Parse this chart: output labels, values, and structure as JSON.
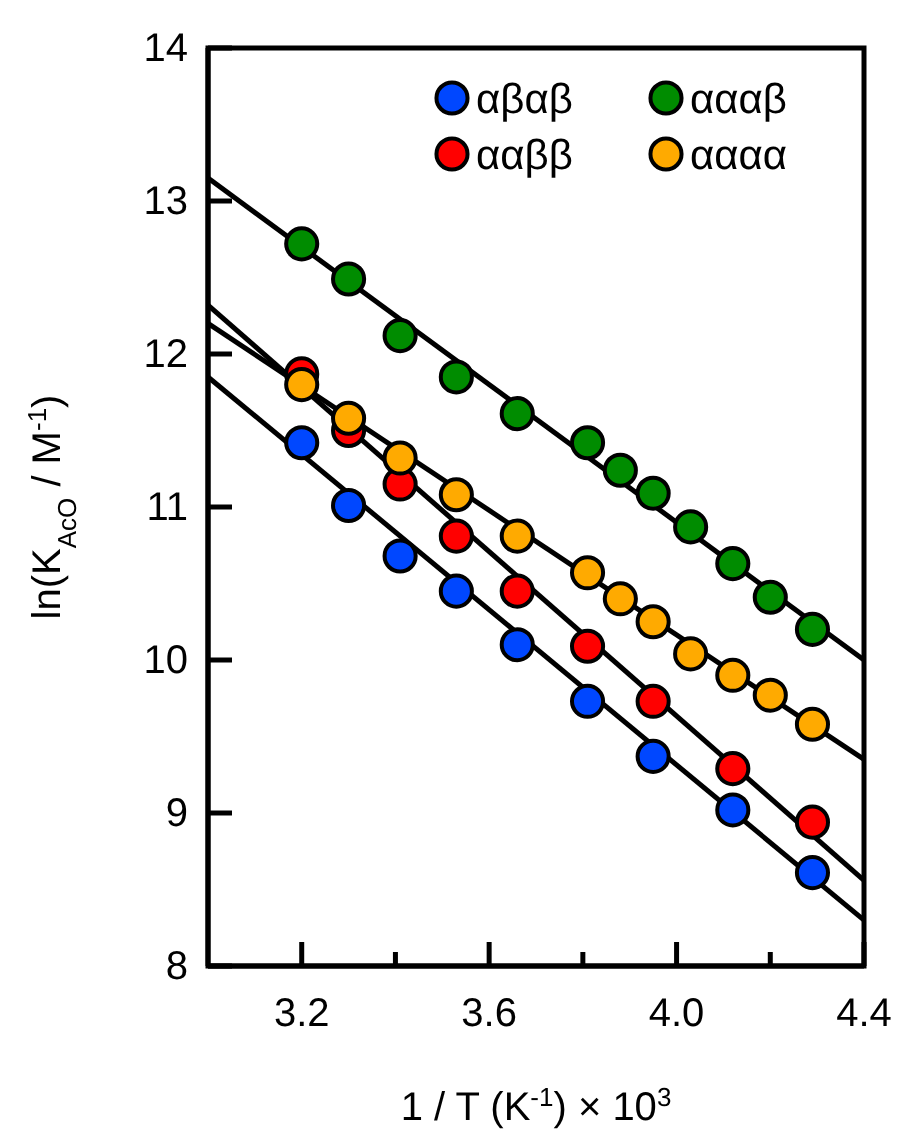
{
  "chart_data": {
    "type": "scatter",
    "xlabel": "1 / T (K$^{-1}$) × 10$^{3}$",
    "ylabel": "ln(K$_{AcO}$ / M$^{-1}$)",
    "xlim": [
      3.0,
      4.4
    ],
    "xticks": [
      3.2,
      {
        "value": 3.4,
        "label": null
      },
      3.6,
      {
        "value": 3.8,
        "label": null
      },
      "4.0",
      {
        "value": 4.2,
        "label": null
      },
      4.4
    ],
    "ylim": [
      8,
      14
    ],
    "yticks": [
      8,
      9,
      10,
      11,
      12,
      13,
      14
    ],
    "grid": false,
    "legend": "top right",
    "marker": "circle",
    "series": [
      {
        "name": "αβαβ",
        "color": "#0047ff",
        "x": [
          3.2,
          3.3,
          3.41,
          3.53,
          3.66,
          3.81,
          3.95,
          4.12,
          4.29
        ],
        "values": [
          11.42,
          11.01,
          10.68,
          10.45,
          10.1,
          9.73,
          9.37,
          9.02,
          8.61
        ]
      },
      {
        "name": "αααβ",
        "color": "#008c00",
        "x": [
          3.2,
          3.3,
          3.41,
          3.53,
          3.66,
          3.81,
          3.88,
          3.95,
          4.03,
          4.12,
          4.2,
          4.29
        ],
        "values": [
          12.72,
          12.49,
          12.12,
          11.85,
          11.61,
          11.42,
          11.24,
          11.09,
          10.87,
          10.63,
          10.41,
          10.2
        ]
      },
      {
        "name": "ααββ",
        "color": "#ff0000",
        "x": [
          3.2,
          3.3,
          3.41,
          3.53,
          3.66,
          3.81,
          3.95,
          4.12,
          4.29
        ],
        "values": [
          11.87,
          11.5,
          11.15,
          10.81,
          10.45,
          10.09,
          9.73,
          9.29,
          8.94
        ]
      },
      {
        "name": "αααα",
        "color": "#ffaa00",
        "x": [
          3.2,
          3.3,
          3.41,
          3.53,
          3.66,
          3.81,
          3.88,
          3.95,
          4.03,
          4.12,
          4.2,
          4.29
        ],
        "values": [
          11.8,
          11.58,
          11.32,
          11.08,
          10.81,
          10.57,
          10.4,
          10.25,
          10.04,
          9.9,
          9.77,
          9.58
        ]
      },
      {
        "type": "line",
        "color": "#000000",
        "marker": "none",
        "x": [
          3.0,
          4.4
        ],
        "values": [
          11.85,
          8.3
        ]
      },
      {
        "type": "line",
        "color": "#000000",
        "marker": "none",
        "x": [
          3.0,
          4.4
        ],
        "values": [
          13.15,
          10.0
        ]
      },
      {
        "type": "line",
        "color": "#000000",
        "marker": "none",
        "x": [
          3.0,
          4.4
        ],
        "values": [
          12.32,
          8.56
        ]
      },
      {
        "type": "line",
        "color": "#000000",
        "marker": "none",
        "x": [
          3.0,
          4.4
        ],
        "values": [
          12.2,
          9.35
        ]
      }
    ]
  }
}
